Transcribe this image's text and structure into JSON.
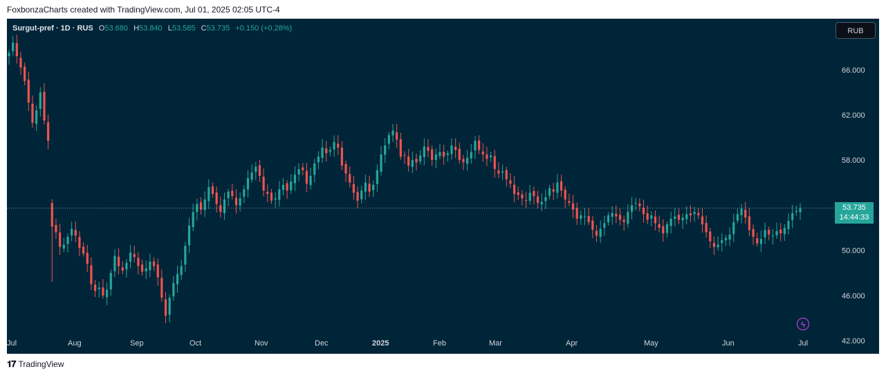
{
  "header": {
    "credit": "FoxbonzaCharts created with TradingView.com, Jul 01, 2025 02:05 UTC-4"
  },
  "legend": {
    "symbol": "Surgut-pref · 1D · RUS",
    "o_label": "O",
    "o_value": "53.680",
    "h_label": "H",
    "h_value": "53.840",
    "l_label": "L",
    "l_value": "53.585",
    "c_label": "C",
    "c_value": "53.735",
    "change": "+0.150 (+0.28%)"
  },
  "currency_button": "RUB",
  "price_tag": {
    "price": "53.735",
    "countdown": "14:44:33"
  },
  "footer": {
    "brand": "TradingView",
    "logo_icon": "tradingview-logo-icon"
  },
  "colors": {
    "up": "#26a69a",
    "down": "#ef5350",
    "background": "#012538",
    "axis_text": "#d1d4dc"
  },
  "chart_data": {
    "type": "candlestick",
    "y_axis": {
      "ticks": [
        66,
        62,
        58,
        54,
        50,
        46,
        42
      ],
      "tick_labels": [
        "66.000",
        "62.000",
        "58.000",
        "54.000",
        "50.000",
        "46.000",
        "42.000"
      ],
      "range": [
        41.2,
        68.5
      ]
    },
    "x_axis": {
      "tick_labels": [
        "Jul",
        "Aug",
        "Sep",
        "Oct",
        "Nov",
        "Dec",
        "2025",
        "Feb",
        "Mar",
        "Apr",
        "May",
        "Jun",
        "Jul"
      ]
    },
    "last_price": 53.735,
    "closes": [
      67.5,
      68.4,
      67.2,
      66.2,
      65.0,
      63.1,
      61.3,
      62.4,
      64.0,
      61.5,
      59.7,
      52.1,
      51.6,
      50.3,
      50.5,
      51.2,
      51.9,
      51.3,
      50.2,
      49.7,
      48.8,
      47.0,
      46.4,
      46.7,
      46.0,
      46.5,
      48.0,
      49.5,
      48.6,
      48.2,
      48.9,
      49.8,
      49.4,
      48.6,
      48.1,
      48.4,
      49.0,
      48.6,
      47.6,
      45.8,
      44.2,
      45.8,
      47.1,
      47.9,
      48.6,
      50.4,
      52.2,
      53.4,
      54.1,
      53.6,
      54.5,
      55.6,
      55.0,
      54.1,
      53.4,
      54.5,
      55.2,
      54.8,
      54.0,
      54.6,
      55.4,
      56.4,
      56.9,
      57.4,
      56.6,
      55.3,
      55.0,
      54.4,
      54.6,
      55.4,
      55.8,
      55.3,
      56.1,
      56.7,
      57.2,
      57.1,
      55.9,
      56.6,
      57.7,
      58.3,
      59.1,
      58.6,
      58.9,
      59.6,
      59.1,
      57.5,
      56.8,
      56.0,
      55.1,
      54.4,
      55.3,
      56.0,
      55.2,
      55.8,
      57.1,
      58.5,
      59.3,
      60.2,
      60.6,
      59.8,
      58.3,
      58.4,
      57.5,
      58.0,
      57.8,
      58.4,
      59.2,
      58.8,
      58.0,
      58.5,
      58.7,
      58.3,
      58.6,
      59.3,
      58.9,
      58.0,
      57.8,
      58.2,
      58.7,
      59.7,
      58.9,
      58.5,
      58.1,
      58.4,
      57.2,
      56.8,
      57.0,
      56.3,
      55.9,
      55.0,
      54.9,
      54.6,
      54.4,
      55.1,
      54.8,
      54.2,
      54.3,
      54.7,
      55.5,
      55.2,
      56.0,
      55.3,
      54.5,
      54.2,
      53.6,
      52.8,
      53.1,
      53.0,
      52.5,
      51.8,
      51.3,
      51.9,
      52.4,
      53.1,
      53.3,
      53.0,
      52.7,
      52.5,
      53.4,
      54.0,
      54.2,
      53.9,
      53.2,
      52.7,
      53.1,
      52.4,
      52.0,
      51.5,
      52.3,
      52.8,
      53.0,
      52.7,
      52.9,
      53.2,
      53.1,
      53.4,
      53.1,
      52.3,
      51.6,
      50.8,
      50.3,
      50.5,
      50.9,
      51.1,
      51.4,
      52.5,
      53.2,
      53.7,
      52.9,
      51.8,
      51.2,
      50.6,
      51.0,
      51.8,
      51.4,
      51.3,
      51.7,
      51.5,
      52.0,
      52.6,
      53.3,
      53.5,
      53.735
    ]
  }
}
